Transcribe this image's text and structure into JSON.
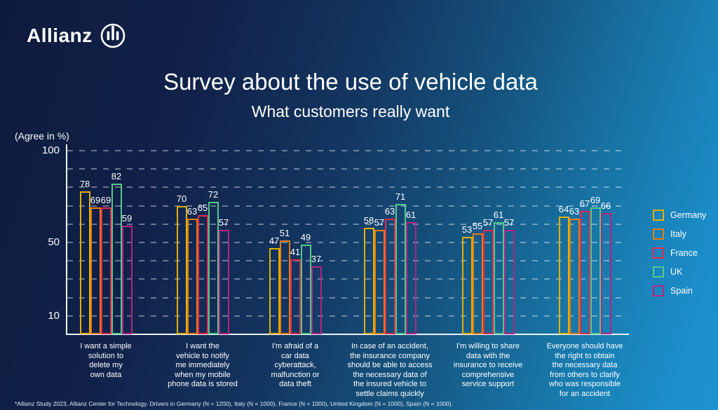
{
  "brand": {
    "logo_text": "Allianz",
    "logo_icon": "allianz-circle-bars-icon"
  },
  "chart_data": {
    "type": "bar",
    "title": "Survey about the use of vehicle data",
    "subtitle": "What customers really want",
    "unit_label": "(Agree in %)",
    "ylim": [
      0,
      100
    ],
    "yticks": [
      100,
      50,
      10
    ],
    "gridline_step": 10,
    "grid": true,
    "legend_position": "right",
    "bar_style": "outlined-transparent",
    "categories": [
      "I want a simple solution to delete my own data",
      "I want the vehicle to notify me immediately when my mobile phone data is stored",
      "I'm afraid of a car data cyberattack, malfunction or data theft",
      "In case of an accident, the insurance company should be able to access the necessary data of the insured vehicle to settle claims quickly",
      "I'm willing to share data with the insurance to receive comprehensive service support",
      "Everyone should have the right to obtain the necessary data from others to clarify who was responsible for an accident"
    ],
    "category_lines": [
      [
        "I want a simple",
        "solution to",
        "delete my",
        "own data"
      ],
      [
        "I want the",
        "vehicle to notify",
        "me immediately",
        "when my mobile",
        "phone data is stored"
      ],
      [
        "I'm afraid of a",
        "car data",
        "cyberattack,",
        "malfunction or",
        "data theft"
      ],
      [
        "In case of an accident,",
        "the insurance company",
        "should be able to access",
        "the necessary data of",
        "the insured vehicle to",
        "settle claims quickly"
      ],
      [
        "I'm willing to share",
        "data with the",
        "insurance to receive",
        "comprehensive",
        "service support"
      ],
      [
        "Everyone should have",
        "the right to obtain",
        "the necessary data",
        "from others to clarify",
        "who was responsible",
        "for an accident"
      ]
    ],
    "series": [
      {
        "name": "Germany",
        "color": "#E5B000",
        "values": [
          78,
          70,
          47,
          58,
          53,
          64
        ]
      },
      {
        "name": "Italy",
        "color": "#E87D0D",
        "values": [
          69,
          63,
          51,
          57,
          55,
          63
        ]
      },
      {
        "name": "France",
        "color": "#E02A50",
        "values": [
          69,
          65,
          41,
          63,
          57,
          67
        ]
      },
      {
        "name": "UK",
        "color": "#55C88B",
        "values": [
          82,
          72,
          49,
          71,
          61,
          69
        ]
      },
      {
        "name": "Spain",
        "color": "#B52383",
        "values": [
          59,
          57,
          37,
          61,
          57,
          66
        ]
      }
    ]
  },
  "footnote": "*Allianz Study 2023, Allianz Center for Technology. Drivers in Germany (N = 1200),  Italy (N = 1000), France (N = 1000), United Kingdom (N = 1000), Spain (N = 1000)."
}
